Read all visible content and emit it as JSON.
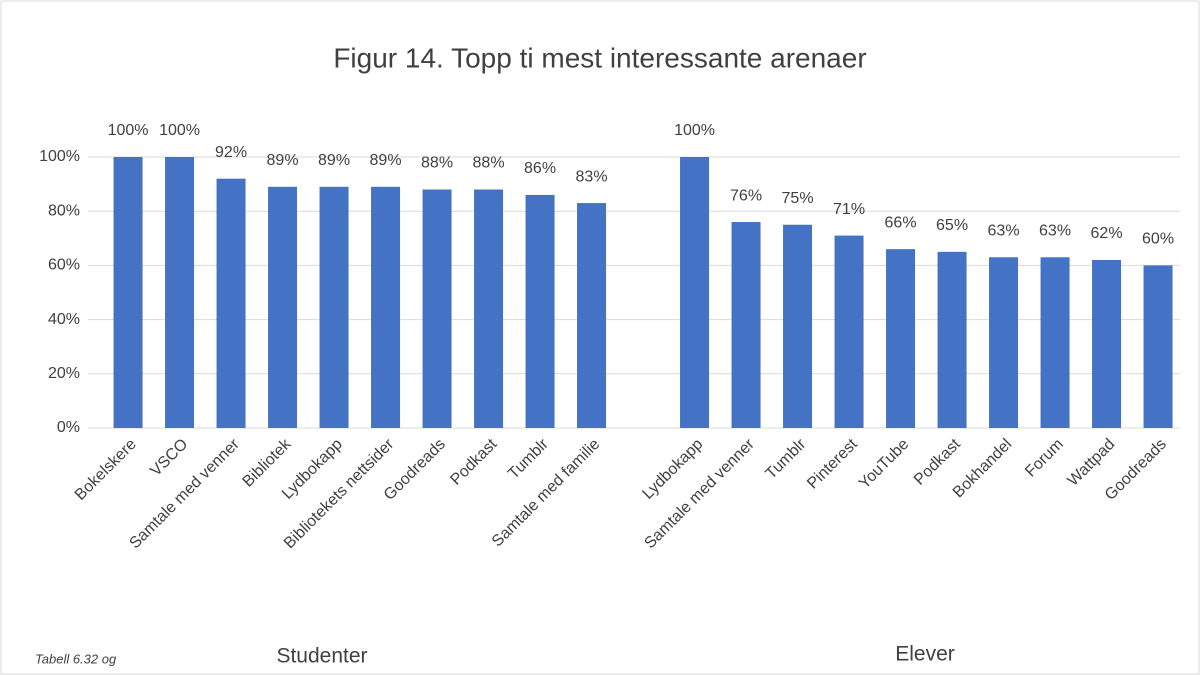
{
  "chart_data": {
    "type": "bar",
    "title": "Figur 14. Topp ti mest interessante arenaer",
    "categories": [
      "Bokelskere",
      "VSCO",
      "Samtale med venner",
      "Bibliotek",
      "Lydbokapp",
      "Bibliotekets nettsider",
      "Goodreads",
      "Podkast",
      "Tumblr",
      "Samtale med familie",
      null,
      "Lydbokapp",
      "Samtale med venner",
      "Tumblr",
      "Pinterest",
      "YouTube",
      "Podkast",
      "Bokhandel",
      "Forum",
      "Wattpad",
      "Goodreads"
    ],
    "values": [
      100,
      100,
      92,
      89,
      89,
      89,
      88,
      88,
      86,
      83,
      null,
      100,
      76,
      75,
      71,
      66,
      65,
      63,
      63,
      62,
      60
    ],
    "value_labels": [
      "100%",
      "100%",
      "92%",
      "89%",
      "89%",
      "89%",
      "88%",
      "88%",
      "86%",
      "83%",
      null,
      "100%",
      "76%",
      "75%",
      "71%",
      "66%",
      "65%",
      "63%",
      "63%",
      "62%",
      "60%"
    ],
    "groups": [
      "Studenter",
      "Elever"
    ],
    "note": "Tabell 6.32 og",
    "color": "#4472c4",
    "ylim": [
      0,
      100
    ],
    "yticks": [
      {
        "value": 0,
        "label": "0%"
      },
      {
        "value": 20,
        "label": "20%"
      },
      {
        "value": 40,
        "label": "40%"
      },
      {
        "value": 60,
        "label": "60%"
      },
      {
        "value": 80,
        "label": "80%"
      },
      {
        "value": 100,
        "label": "100%"
      }
    ],
    "grid": true
  }
}
